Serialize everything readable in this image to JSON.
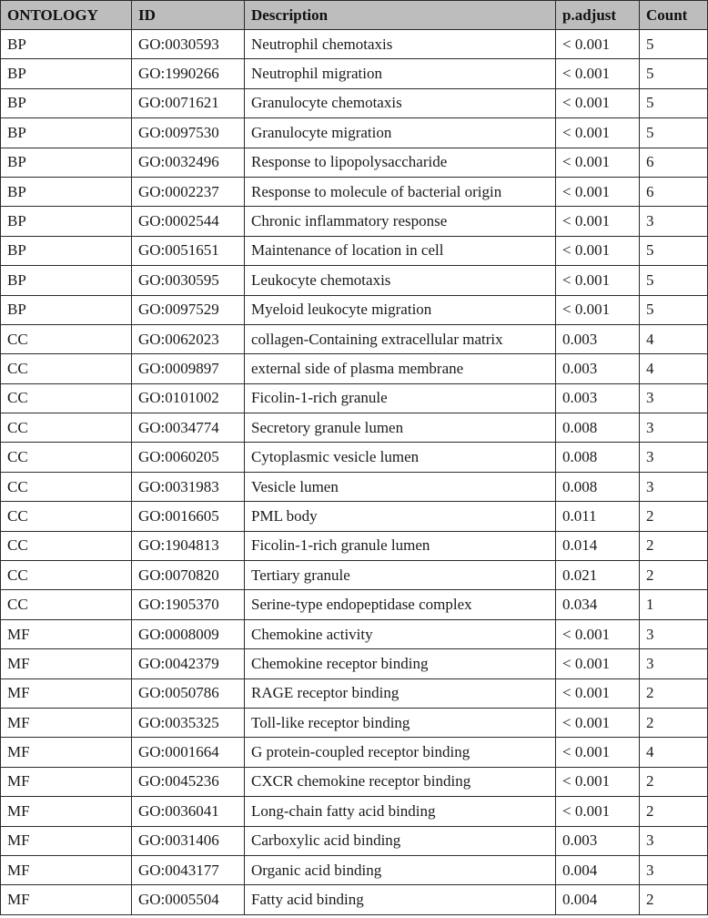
{
  "header_fill": "#bdbdbd",
  "columns": [
    "ONTOLOGY",
    "ID",
    "Description",
    "p.adjust",
    "Count"
  ],
  "rows": [
    [
      "BP",
      "GO:0030593",
      "Neutrophil chemotaxis",
      "< 0.001",
      "5"
    ],
    [
      "BP",
      "GO:1990266",
      "Neutrophil migration",
      "< 0.001",
      "5"
    ],
    [
      "BP",
      "GO:0071621",
      "Granulocyte chemotaxis",
      "< 0.001",
      "5"
    ],
    [
      "BP",
      "GO:0097530",
      "Granulocyte migration",
      "< 0.001",
      "5"
    ],
    [
      "BP",
      "GO:0032496",
      "Response to lipopolysaccharide",
      "< 0.001",
      "6"
    ],
    [
      "BP",
      "GO:0002237",
      "Response to molecule of bacterial origin",
      "< 0.001",
      "6"
    ],
    [
      "BP",
      "GO:0002544",
      "Chronic inflammatory response",
      "< 0.001",
      "3"
    ],
    [
      "BP",
      "GO:0051651",
      "Maintenance of location in cell",
      "< 0.001",
      "5"
    ],
    [
      "BP",
      "GO:0030595",
      "Leukocyte chemotaxis",
      "< 0.001",
      "5"
    ],
    [
      "BP",
      "GO:0097529",
      "Myeloid leukocyte migration",
      "< 0.001",
      "5"
    ],
    [
      "CC",
      "GO:0062023",
      "collagen-Containing extracellular matrix",
      "0.003",
      "4"
    ],
    [
      "CC",
      "GO:0009897",
      "external side of plasma membrane",
      "0.003",
      "4"
    ],
    [
      "CC",
      "GO:0101002",
      "Ficolin-1-rich granule",
      "0.003",
      "3"
    ],
    [
      "CC",
      "GO:0034774",
      "Secretory granule lumen",
      "0.008",
      "3"
    ],
    [
      "CC",
      "GO:0060205",
      "Cytoplasmic vesicle lumen",
      "0.008",
      "3"
    ],
    [
      "CC",
      "GO:0031983",
      "Vesicle lumen",
      "0.008",
      "3"
    ],
    [
      "CC",
      "GO:0016605",
      "PML body",
      "0.011",
      "2"
    ],
    [
      "CC",
      "GO:1904813",
      "Ficolin-1-rich granule lumen",
      "0.014",
      "2"
    ],
    [
      "CC",
      "GO:0070820",
      "Tertiary granule",
      "0.021",
      "2"
    ],
    [
      "CC",
      "GO:1905370",
      "Serine-type endopeptidase complex",
      "0.034",
      "1"
    ],
    [
      "MF",
      "GO:0008009",
      "Chemokine activity",
      "< 0.001",
      "3"
    ],
    [
      "MF",
      "GO:0042379",
      "Chemokine receptor binding",
      "< 0.001",
      "3"
    ],
    [
      "MF",
      "GO:0050786",
      "RAGE receptor binding",
      "< 0.001",
      "2"
    ],
    [
      "MF",
      "GO:0035325",
      "Toll-like receptor binding",
      "< 0.001",
      "2"
    ],
    [
      "MF",
      "GO:0001664",
      "G protein-coupled receptor binding",
      "< 0.001",
      "4"
    ],
    [
      "MF",
      "GO:0045236",
      "CXCR chemokine receptor binding",
      "< 0.001",
      "2"
    ],
    [
      "MF",
      "GO:0036041",
      "Long-chain fatty acid binding",
      "< 0.001",
      "2"
    ],
    [
      "MF",
      "GO:0031406",
      "Carboxylic acid binding",
      "0.003",
      "3"
    ],
    [
      "MF",
      "GO:0043177",
      "Organic acid binding",
      "0.004",
      "3"
    ],
    [
      "MF",
      "GO:0005504",
      "Fatty acid binding",
      "0.004",
      "2"
    ]
  ]
}
